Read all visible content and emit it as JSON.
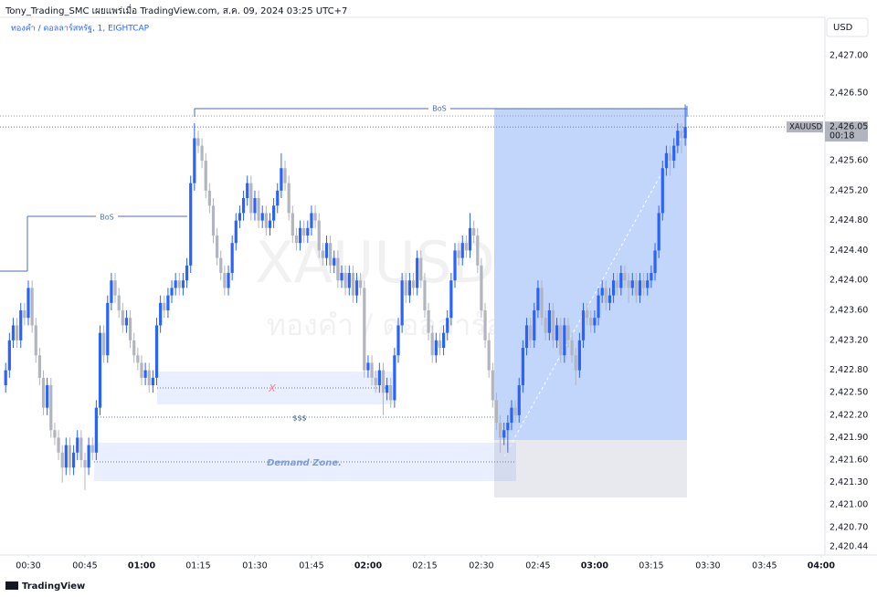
{
  "header": {
    "publisher": "Tony_Trading_SMC เผยแพร่เมื่อ TradingView.com, ส.ค. 09, 2024 03:25 UTC+7",
    "symbol": "ทองคำ / ดอลลาร์สหรัฐ, 1, EIGHTCAP",
    "currency": "USD"
  },
  "watermark": {
    "ticker": "XAUUSD, 1",
    "name": "ทองคำ / ดอลลาร์สหรัฐ"
  },
  "footer": {
    "brand": "TradingView"
  },
  "chart_data": {
    "type": "candlestick",
    "up_color": "#2962ff",
    "down_color": "#b2b5be",
    "xlim": [
      22.5,
      241
    ],
    "ylim": [
      2420.32,
      2427.6
    ],
    "xticks": [
      {
        "value": 30,
        "label": "00:30"
      },
      {
        "value": 45,
        "label": "00:45"
      },
      {
        "value": 60,
        "label": "01:00"
      },
      {
        "value": 75,
        "label": "01:15"
      },
      {
        "value": 90,
        "label": "01:30"
      },
      {
        "value": 105,
        "label": "01:45"
      },
      {
        "value": 120,
        "label": "02:00"
      },
      {
        "value": 135,
        "label": "02:15"
      },
      {
        "value": 150,
        "label": "02:30"
      },
      {
        "value": 165,
        "label": "02:45"
      },
      {
        "value": 180,
        "label": "03:00"
      },
      {
        "value": 195,
        "label": "03:15"
      },
      {
        "value": 210,
        "label": "03:30"
      },
      {
        "value": 225,
        "label": "03:45"
      },
      {
        "value": 240,
        "label": "04:00"
      }
    ],
    "yticks": [
      {
        "value": 2427.0,
        "label": "2,427.00"
      },
      {
        "value": 2426.5,
        "label": "2,426.50"
      },
      {
        "value": 2425.6,
        "label": "2,425.60"
      },
      {
        "value": 2425.2,
        "label": "2,425.20"
      },
      {
        "value": 2424.8,
        "label": "2,424.80"
      },
      {
        "value": 2424.4,
        "label": "2,424.40"
      },
      {
        "value": 2424.0,
        "label": "2,424.00"
      },
      {
        "value": 2423.6,
        "label": "2,423.60"
      },
      {
        "value": 2423.2,
        "label": "2,423.20"
      },
      {
        "value": 2422.8,
        "label": "2,422.80"
      },
      {
        "value": 2422.5,
        "label": "2,422.50"
      },
      {
        "value": 2422.2,
        "label": "2,422.20"
      },
      {
        "value": 2421.9,
        "label": "2,421.90"
      },
      {
        "value": 2421.6,
        "label": "2,421.60"
      },
      {
        "value": 2421.3,
        "label": "2,421.30"
      },
      {
        "value": 2421.0,
        "label": "2,421.00"
      },
      {
        "value": 2420.7,
        "label": "2,420.70"
      },
      {
        "value": 2420.44,
        "label": "2,420.44"
      }
    ],
    "last_price": {
      "ticker": "XAUUSD",
      "value": 2426.05,
      "label": "2,426.05",
      "countdown": "00:18"
    },
    "annotations": [
      "BoS",
      "BoS",
      "X",
      "$$$",
      "Demand Zone."
    ],
    "candles": [
      [
        24,
        2422.6,
        2422.9,
        2422.5,
        2422.8
      ],
      [
        25,
        2422.8,
        2423.3,
        2422.7,
        2423.2
      ],
      [
        26,
        2423.2,
        2423.5,
        2423.1,
        2423.4
      ],
      [
        27,
        2423.4,
        2423.5,
        2423.1,
        2423.2
      ],
      [
        28,
        2423.2,
        2423.7,
        2423.1,
        2423.6
      ],
      [
        29,
        2423.6,
        2423.7,
        2423.4,
        2423.5
      ],
      [
        30,
        2423.5,
        2424.0,
        2423.4,
        2423.9
      ],
      [
        31,
        2423.9,
        2424.0,
        2423.3,
        2423.4
      ],
      [
        32,
        2423.4,
        2423.5,
        2422.9,
        2423.0
      ],
      [
        33,
        2423.0,
        2423.1,
        2422.6,
        2422.7
      ],
      [
        34,
        2422.7,
        2422.8,
        2422.2,
        2422.3
      ],
      [
        35,
        2422.3,
        2422.7,
        2422.2,
        2422.6
      ],
      [
        36,
        2422.6,
        2422.7,
        2421.9,
        2422.0
      ],
      [
        37,
        2422.0,
        2422.1,
        2421.8,
        2421.9
      ],
      [
        38,
        2421.9,
        2422.0,
        2421.6,
        2421.7
      ],
      [
        39,
        2421.7,
        2421.8,
        2421.3,
        2421.5
      ],
      [
        40,
        2421.5,
        2421.9,
        2421.4,
        2421.8
      ],
      [
        41,
        2421.8,
        2421.9,
        2421.4,
        2421.5
      ],
      [
        42,
        2421.5,
        2421.8,
        2421.4,
        2421.7
      ],
      [
        43,
        2421.7,
        2422.0,
        2421.6,
        2421.9
      ],
      [
        44,
        2421.9,
        2422.0,
        2421.5,
        2421.6
      ],
      [
        45,
        2421.6,
        2421.7,
        2421.2,
        2421.5
      ],
      [
        46,
        2421.5,
        2421.9,
        2421.4,
        2421.8
      ],
      [
        47,
        2421.8,
        2421.9,
        2421.6,
        2421.7
      ],
      [
        48,
        2421.7,
        2422.4,
        2421.6,
        2422.3
      ],
      [
        49,
        2422.3,
        2423.4,
        2422.2,
        2423.3
      ],
      [
        50,
        2423.3,
        2423.4,
        2422.9,
        2423.0
      ],
      [
        51,
        2423.0,
        2423.8,
        2422.9,
        2423.7
      ],
      [
        52,
        2423.7,
        2424.1,
        2423.6,
        2424.0
      ],
      [
        53,
        2424.0,
        2424.1,
        2423.7,
        2423.8
      ],
      [
        54,
        2423.8,
        2423.9,
        2423.5,
        2423.6
      ],
      [
        55,
        2423.6,
        2423.7,
        2423.3,
        2423.4
      ],
      [
        56,
        2423.4,
        2423.6,
        2423.3,
        2423.5
      ],
      [
        57,
        2423.5,
        2423.6,
        2423.1,
        2423.2
      ],
      [
        58,
        2423.2,
        2423.3,
        2422.9,
        2423.0
      ],
      [
        59,
        2423.0,
        2423.1,
        2422.8,
        2422.9
      ],
      [
        60,
        2422.9,
        2423.0,
        2422.6,
        2422.7
      ],
      [
        61,
        2422.7,
        2422.9,
        2422.6,
        2422.8
      ],
      [
        62,
        2422.8,
        2422.9,
        2422.5,
        2422.6
      ],
      [
        63,
        2422.6,
        2422.8,
        2422.5,
        2422.7
      ],
      [
        64,
        2422.7,
        2423.5,
        2422.6,
        2423.4
      ],
      [
        65,
        2423.4,
        2423.8,
        2423.3,
        2423.7
      ],
      [
        66,
        2423.7,
        2423.8,
        2423.5,
        2423.6
      ],
      [
        67,
        2423.6,
        2423.9,
        2423.5,
        2423.8
      ],
      [
        68,
        2423.8,
        2424.0,
        2423.7,
        2423.9
      ],
      [
        69,
        2423.9,
        2424.1,
        2423.8,
        2424.0
      ],
      [
        70,
        2424.0,
        2424.1,
        2423.8,
        2423.9
      ],
      [
        71,
        2423.9,
        2424.1,
        2423.8,
        2424.0
      ],
      [
        72,
        2424.0,
        2424.3,
        2423.9,
        2424.2
      ],
      [
        73,
        2424.2,
        2425.4,
        2424.1,
        2425.3
      ],
      [
        74,
        2425.3,
        2426.1,
        2425.2,
        2425.9
      ],
      [
        75,
        2425.9,
        2426.0,
        2425.7,
        2425.8
      ],
      [
        76,
        2425.8,
        2425.9,
        2425.5,
        2425.6
      ],
      [
        77,
        2425.6,
        2425.7,
        2425.1,
        2425.2
      ],
      [
        78,
        2425.2,
        2425.3,
        2424.9,
        2425.0
      ],
      [
        79,
        2425.0,
        2425.1,
        2424.5,
        2424.6
      ],
      [
        80,
        2424.6,
        2424.7,
        2424.2,
        2424.3
      ],
      [
        81,
        2424.3,
        2424.4,
        2424.0,
        2424.1
      ],
      [
        82,
        2424.1,
        2424.2,
        2423.8,
        2423.9
      ],
      [
        83,
        2423.9,
        2424.2,
        2423.8,
        2424.1
      ],
      [
        84,
        2424.1,
        2424.6,
        2424.0,
        2424.5
      ],
      [
        85,
        2424.5,
        2424.9,
        2424.4,
        2424.8
      ],
      [
        86,
        2424.8,
        2425.0,
        2424.7,
        2424.9
      ],
      [
        87,
        2424.9,
        2425.2,
        2424.8,
        2425.1
      ],
      [
        88,
        2425.1,
        2425.4,
        2425.0,
        2425.3
      ],
      [
        89,
        2425.3,
        2425.4,
        2424.8,
        2424.9
      ],
      [
        90,
        2424.9,
        2425.2,
        2424.8,
        2425.1
      ],
      [
        91,
        2425.1,
        2425.2,
        2424.7,
        2424.8
      ],
      [
        92,
        2424.8,
        2425.0,
        2424.7,
        2424.9
      ],
      [
        93,
        2424.9,
        2425.0,
        2424.6,
        2424.7
      ],
      [
        94,
        2424.7,
        2424.9,
        2424.6,
        2424.8
      ],
      [
        95,
        2424.8,
        2425.1,
        2424.7,
        2425.0
      ],
      [
        96,
        2425.0,
        2425.3,
        2424.9,
        2425.2
      ],
      [
        97,
        2425.2,
        2425.7,
        2425.1,
        2425.5
      ],
      [
        98,
        2425.5,
        2425.6,
        2425.2,
        2425.3
      ],
      [
        99,
        2425.3,
        2425.4,
        2424.8,
        2424.9
      ],
      [
        100,
        2424.9,
        2425.0,
        2424.5,
        2424.6
      ],
      [
        101,
        2424.6,
        2424.7,
        2424.4,
        2424.5
      ],
      [
        102,
        2424.5,
        2424.8,
        2424.4,
        2424.7
      ],
      [
        103,
        2424.7,
        2424.8,
        2424.5,
        2424.6
      ],
      [
        104,
        2424.6,
        2424.8,
        2424.5,
        2424.7
      ],
      [
        105,
        2424.7,
        2425.0,
        2424.6,
        2424.9
      ],
      [
        106,
        2424.9,
        2425.0,
        2424.7,
        2424.8
      ],
      [
        107,
        2424.8,
        2424.9,
        2424.3,
        2424.4
      ],
      [
        108,
        2424.4,
        2424.5,
        2424.2,
        2424.3
      ],
      [
        109,
        2424.3,
        2424.6,
        2424.2,
        2424.5
      ],
      [
        110,
        2424.5,
        2424.6,
        2424.1,
        2424.2
      ],
      [
        111,
        2424.2,
        2424.4,
        2424.1,
        2424.3
      ],
      [
        112,
        2424.3,
        2424.4,
        2423.9,
        2424.0
      ],
      [
        113,
        2424.0,
        2424.2,
        2423.9,
        2424.1
      ],
      [
        114,
        2424.1,
        2424.2,
        2423.8,
        2423.9
      ],
      [
        115,
        2423.9,
        2424.2,
        2423.8,
        2424.1
      ],
      [
        116,
        2424.1,
        2424.2,
        2423.7,
        2423.8
      ],
      [
        117,
        2423.8,
        2424.1,
        2423.7,
        2424.0
      ],
      [
        118,
        2424.0,
        2424.1,
        2423.8,
        2423.9
      ],
      [
        119,
        2423.9,
        2424.0,
        2422.7,
        2422.8
      ],
      [
        120,
        2422.8,
        2423.0,
        2422.7,
        2422.9
      ],
      [
        121,
        2422.9,
        2423.0,
        2422.6,
        2422.7
      ],
      [
        122,
        2422.7,
        2422.8,
        2422.5,
        2422.6
      ],
      [
        123,
        2422.6,
        2422.9,
        2422.5,
        2422.8
      ],
      [
        124,
        2422.8,
        2422.9,
        2422.2,
        2422.5
      ],
      [
        125,
        2422.5,
        2422.7,
        2422.4,
        2422.6
      ],
      [
        126,
        2422.6,
        2422.7,
        2422.3,
        2422.4
      ],
      [
        127,
        2422.4,
        2423.1,
        2422.3,
        2423.0
      ],
      [
        128,
        2423.0,
        2423.5,
        2422.9,
        2423.4
      ],
      [
        129,
        2423.4,
        2424.1,
        2423.3,
        2424.0
      ],
      [
        130,
        2424.0,
        2424.1,
        2423.7,
        2423.8
      ],
      [
        131,
        2423.8,
        2424.1,
        2423.7,
        2424.0
      ],
      [
        132,
        2424.0,
        2424.1,
        2423.8,
        2423.9
      ],
      [
        133,
        2423.9,
        2424.4,
        2423.8,
        2424.3
      ],
      [
        134,
        2424.3,
        2424.4,
        2423.9,
        2424.0
      ],
      [
        135,
        2424.0,
        2424.1,
        2423.5,
        2423.6
      ],
      [
        136,
        2423.6,
        2423.7,
        2423.2,
        2423.3
      ],
      [
        137,
        2423.3,
        2423.4,
        2422.9,
        2423.0
      ],
      [
        138,
        2423.0,
        2423.3,
        2422.9,
        2423.2
      ],
      [
        139,
        2423.2,
        2423.3,
        2423.0,
        2423.1
      ],
      [
        140,
        2423.1,
        2423.4,
        2423.0,
        2423.3
      ],
      [
        141,
        2423.3,
        2423.6,
        2423.2,
        2423.5
      ],
      [
        142,
        2423.5,
        2424.1,
        2423.4,
        2424.0
      ],
      [
        143,
        2424.0,
        2424.5,
        2423.9,
        2424.4
      ],
      [
        144,
        2424.4,
        2424.5,
        2424.2,
        2424.3
      ],
      [
        145,
        2424.3,
        2424.6,
        2424.2,
        2424.5
      ],
      [
        146,
        2424.5,
        2424.6,
        2424.3,
        2424.4
      ],
      [
        147,
        2424.4,
        2424.9,
        2424.3,
        2424.7
      ],
      [
        148,
        2424.7,
        2424.8,
        2424.5,
        2424.6
      ],
      [
        149,
        2424.6,
        2424.7,
        2424.1,
        2424.2
      ],
      [
        150,
        2424.2,
        2424.3,
        2423.5,
        2423.6
      ],
      [
        151,
        2423.6,
        2423.7,
        2423.1,
        2423.2
      ],
      [
        152,
        2423.2,
        2423.3,
        2422.7,
        2422.8
      ],
      [
        153,
        2422.8,
        2422.9,
        2422.3,
        2422.4
      ],
      [
        154,
        2422.4,
        2422.5,
        2422.0,
        2422.1
      ],
      [
        155,
        2422.1,
        2422.2,
        2421.7,
        2421.9
      ],
      [
        156,
        2421.9,
        2422.1,
        2421.8,
        2422.0
      ],
      [
        157,
        2422.0,
        2422.2,
        2421.7,
        2422.1
      ],
      [
        158,
        2422.1,
        2422.4,
        2422.0,
        2422.3
      ],
      [
        159,
        2422.3,
        2422.4,
        2422.1,
        2422.2
      ],
      [
        160,
        2422.2,
        2422.7,
        2422.1,
        2422.6
      ],
      [
        161,
        2422.6,
        2423.2,
        2422.5,
        2423.1
      ],
      [
        162,
        2423.1,
        2423.5,
        2423.0,
        2423.4
      ],
      [
        163,
        2423.4,
        2423.5,
        2423.1,
        2423.2
      ],
      [
        164,
        2423.2,
        2423.7,
        2423.1,
        2423.6
      ],
      [
        165,
        2423.6,
        2424.0,
        2423.5,
        2423.9
      ],
      [
        166,
        2423.9,
        2424.0,
        2423.4,
        2423.5
      ],
      [
        167,
        2423.5,
        2423.6,
        2423.2,
        2423.3
      ],
      [
        168,
        2423.3,
        2423.7,
        2423.2,
        2423.6
      ],
      [
        169,
        2423.6,
        2423.7,
        2423.1,
        2423.2
      ],
      [
        170,
        2423.2,
        2423.5,
        2423.1,
        2423.4
      ],
      [
        171,
        2423.4,
        2423.5,
        2422.9,
        2423.0
      ],
      [
        172,
        2423.0,
        2423.5,
        2422.9,
        2423.4
      ],
      [
        173,
        2423.4,
        2423.5,
        2423.1,
        2423.2
      ],
      [
        174,
        2423.2,
        2423.3,
        2422.9,
        2423.0
      ],
      [
        175,
        2423.0,
        2423.1,
        2422.6,
        2422.8
      ],
      [
        176,
        2422.8,
        2423.3,
        2422.7,
        2423.2
      ],
      [
        177,
        2423.2,
        2423.7,
        2423.1,
        2423.6
      ],
      [
        178,
        2423.6,
        2423.7,
        2423.4,
        2423.5
      ],
      [
        179,
        2423.5,
        2423.6,
        2423.3,
        2423.4
      ],
      [
        180,
        2423.4,
        2423.6,
        2423.3,
        2423.5
      ],
      [
        181,
        2423.5,
        2423.9,
        2423.4,
        2423.8
      ],
      [
        182,
        2423.8,
        2424.0,
        2423.7,
        2423.9
      ],
      [
        183,
        2423.9,
        2424.0,
        2423.6,
        2423.7
      ],
      [
        184,
        2423.7,
        2423.9,
        2423.6,
        2423.8
      ],
      [
        185,
        2423.8,
        2424.1,
        2423.7,
        2424.0
      ],
      [
        186,
        2424.0,
        2424.1,
        2423.8,
        2423.9
      ],
      [
        187,
        2423.9,
        2424.2,
        2423.8,
        2424.1
      ],
      [
        188,
        2424.1,
        2424.2,
        2423.9,
        2424.0
      ],
      [
        189,
        2424.0,
        2424.1,
        2423.7,
        2423.9
      ],
      [
        190,
        2423.9,
        2424.1,
        2423.8,
        2424.0
      ],
      [
        191,
        2424.0,
        2424.1,
        2423.7,
        2423.8
      ],
      [
        192,
        2423.8,
        2424.1,
        2423.7,
        2424.0
      ],
      [
        193,
        2424.0,
        2424.1,
        2423.8,
        2423.9
      ],
      [
        194,
        2423.9,
        2424.1,
        2423.8,
        2424.0
      ],
      [
        195,
        2424.0,
        2424.2,
        2423.9,
        2424.1
      ],
      [
        196,
        2424.1,
        2424.5,
        2424.0,
        2424.4
      ],
      [
        197,
        2424.4,
        2425.0,
        2424.3,
        2424.9
      ],
      [
        198,
        2424.9,
        2425.6,
        2424.8,
        2425.5
      ],
      [
        199,
        2425.5,
        2425.8,
        2425.4,
        2425.7
      ],
      [
        200,
        2425.7,
        2425.8,
        2425.4,
        2425.6
      ],
      [
        201,
        2425.6,
        2425.9,
        2425.5,
        2425.8
      ],
      [
        202,
        2425.8,
        2426.1,
        2425.7,
        2426.0
      ],
      [
        203,
        2426.0,
        2426.1,
        2425.7,
        2425.9
      ],
      [
        204,
        2425.9,
        2426.35,
        2425.8,
        2426.05
      ]
    ]
  }
}
